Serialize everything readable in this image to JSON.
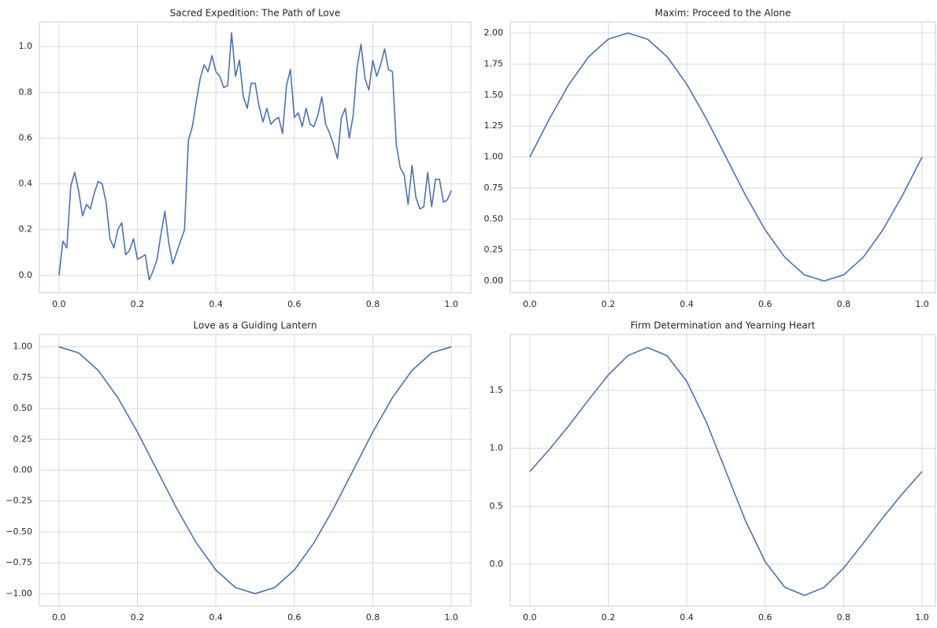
{
  "chart_data": [
    {
      "type": "line",
      "title": "Sacred Expedition: The Path of Love",
      "color": "#4c72b0",
      "grid": true,
      "x": [
        0,
        0.01,
        0.02,
        0.03,
        0.04,
        0.05,
        0.06,
        0.07,
        0.08,
        0.09,
        0.1,
        0.11,
        0.12,
        0.13,
        0.14,
        0.15,
        0.16,
        0.17,
        0.18,
        0.19,
        0.2,
        0.21,
        0.22,
        0.23,
        0.24,
        0.25,
        0.26,
        0.27,
        0.28,
        0.29,
        0.3,
        0.31,
        0.32,
        0.33,
        0.34,
        0.35,
        0.36,
        0.37,
        0.38,
        0.39,
        0.4,
        0.41,
        0.42,
        0.43,
        0.44,
        0.45,
        0.46,
        0.47,
        0.48,
        0.49,
        0.5,
        0.51,
        0.52,
        0.53,
        0.54,
        0.55,
        0.56,
        0.57,
        0.58,
        0.59,
        0.6,
        0.61,
        0.62,
        0.63,
        0.64,
        0.65,
        0.66,
        0.67,
        0.68,
        0.69,
        0.7,
        0.71,
        0.72,
        0.73,
        0.74,
        0.75,
        0.76,
        0.77,
        0.78,
        0.79,
        0.8,
        0.81,
        0.82,
        0.83,
        0.84,
        0.85,
        0.86,
        0.87,
        0.88,
        0.89,
        0.9,
        0.91,
        0.92,
        0.93,
        0.94,
        0.95,
        0.96,
        0.97,
        0.98,
        0.99,
        1
      ],
      "values": [
        0,
        0.15,
        0.12,
        0.39,
        0.45,
        0.37,
        0.26,
        0.31,
        0.29,
        0.36,
        0.41,
        0.4,
        0.32,
        0.16,
        0.12,
        0.2,
        0.23,
        0.09,
        0.11,
        0.16,
        0.07,
        0.08,
        0.09,
        -0.02,
        0.02,
        0.07,
        0.18,
        0.28,
        0.14,
        0.05,
        0.1,
        0.15,
        0.2,
        0.59,
        0.65,
        0.76,
        0.86,
        0.92,
        0.89,
        0.96,
        0.89,
        0.87,
        0.82,
        0.83,
        1.06,
        0.87,
        0.94,
        0.78,
        0.73,
        0.84,
        0.84,
        0.74,
        0.67,
        0.73,
        0.66,
        0.68,
        0.69,
        0.62,
        0.83,
        0.9,
        0.69,
        0.71,
        0.65,
        0.73,
        0.66,
        0.65,
        0.7,
        0.78,
        0.66,
        0.62,
        0.57,
        0.51,
        0.69,
        0.73,
        0.6,
        0.7,
        0.91,
        1.01,
        0.86,
        0.81,
        0.94,
        0.87,
        0.92,
        0.99,
        0.9,
        0.89,
        0.57,
        0.47,
        0.44,
        0.31,
        0.48,
        0.34,
        0.29,
        0.3,
        0.45,
        0.3,
        0.42,
        0.42,
        0.32,
        0.33,
        0.37
      ],
      "xlim": [
        -0.05,
        1.05
      ],
      "ylim": [
        -0.076,
        1.107
      ],
      "xticks": [
        {
          "value": 0,
          "label": "0.0"
        },
        0.2,
        0.4,
        0.6,
        0.8,
        {
          "value": 1,
          "label": "1.0"
        }
      ],
      "yticks": [
        {
          "value": 0,
          "label": "0.0"
        },
        0.2,
        0.4,
        0.6,
        0.8,
        {
          "value": 1,
          "label": "1.0"
        }
      ]
    },
    {
      "type": "line",
      "title": "Maxim: Proceed to the Alone",
      "color": "#4c72b0",
      "grid": true,
      "x": [
        0,
        0.05,
        0.1,
        0.15,
        0.2,
        0.25,
        0.3,
        0.35,
        0.4,
        0.45,
        0.5,
        0.55,
        0.6,
        0.65,
        0.7,
        0.75,
        0.8,
        0.85,
        0.9,
        0.95,
        1
      ],
      "values": [
        1,
        1.309,
        1.588,
        1.809,
        1.951,
        2,
        1.951,
        1.809,
        1.588,
        1.309,
        1,
        0.691,
        0.412,
        0.191,
        0.049,
        0,
        0.049,
        0.191,
        0.412,
        0.691,
        1
      ],
      "xlim": [
        -0.05,
        1.034
      ],
      "ylim": [
        -0.095,
        2.089
      ],
      "xticks": [
        {
          "value": 0,
          "label": "0.0"
        },
        0.2,
        0.4,
        0.6,
        0.8,
        {
          "value": 1,
          "label": "1.0"
        }
      ],
      "yticks": [
        {
          "value": 0,
          "label": "0.00"
        },
        0.25,
        {
          "value": 0.5,
          "label": "0.50"
        },
        0.75,
        {
          "value": 1,
          "label": "1.00"
        },
        1.25,
        {
          "value": 1.5,
          "label": "1.50"
        },
        1.75,
        {
          "value": 2,
          "label": "2.00"
        }
      ]
    },
    {
      "type": "line",
      "title": "Love as a Guiding Lantern",
      "color": "#4c72b0",
      "grid": true,
      "x": [
        0,
        0.05,
        0.1,
        0.15,
        0.2,
        0.25,
        0.3,
        0.35,
        0.4,
        0.45,
        0.5,
        0.55,
        0.6,
        0.65,
        0.7,
        0.75,
        0.8,
        0.85,
        0.9,
        0.95,
        1
      ],
      "values": [
        1,
        0.951,
        0.809,
        0.588,
        0.309,
        0,
        -0.309,
        -0.588,
        -0.809,
        -0.951,
        -1,
        -0.951,
        -0.809,
        -0.588,
        -0.309,
        0,
        0.309,
        0.588,
        0.809,
        0.951,
        1
      ],
      "xlim": [
        -0.05,
        1.05
      ],
      "ylim": [
        -1.1,
        1.1
      ],
      "xticks": [
        {
          "value": 0,
          "label": "0.0"
        },
        0.2,
        0.4,
        0.6,
        0.8,
        {
          "value": 1,
          "label": "1.0"
        }
      ],
      "yticks": [
        {
          "value": 1,
          "label": "1.00"
        },
        0.75,
        {
          "value": 0.5,
          "label": "0.50"
        },
        0.25,
        {
          "value": 0,
          "label": "0.00"
        },
        {
          "value": -0.25,
          "label": "−0.25"
        },
        {
          "value": -0.5,
          "label": "−0.50"
        },
        {
          "value": -0.75,
          "label": "−0.75"
        },
        {
          "value": -1,
          "label": "−1.00"
        }
      ]
    },
    {
      "type": "line",
      "title": "Firm Determination and Yearning Heart",
      "color": "#4c72b0",
      "grid": true,
      "x": [
        0,
        0.05,
        0.1,
        0.15,
        0.2,
        0.25,
        0.3,
        0.35,
        0.4,
        0.45,
        0.5,
        0.55,
        0.6,
        0.65,
        0.7,
        0.75,
        0.8,
        0.85,
        0.9,
        0.95,
        1
      ],
      "values": [
        0.8,
        0.991,
        1.198,
        1.419,
        1.633,
        1.8,
        1.869,
        1.799,
        1.578,
        1.227,
        0.8,
        0.373,
        0.022,
        -0.199,
        -0.269,
        -0.2,
        -0.033,
        0.181,
        0.402,
        0.609,
        0.8
      ],
      "xlim": [
        -0.05,
        1.034
      ],
      "ylim": [
        -0.36,
        1.982
      ],
      "xticks": [
        {
          "value": 0,
          "label": "0.0"
        },
        0.2,
        0.4,
        0.6,
        0.8,
        {
          "value": 1,
          "label": "1.0"
        }
      ],
      "yticks": [
        {
          "value": 0,
          "label": "0.0"
        },
        0.5,
        {
          "value": 1,
          "label": "1.0"
        },
        1.5
      ]
    }
  ]
}
